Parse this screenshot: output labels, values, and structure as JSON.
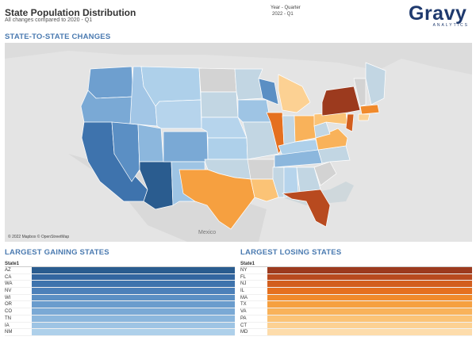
{
  "header": {
    "title": "State Population Distribution",
    "subtitle": "All changes compared to 2020 - Q1",
    "filter_label": "Year - Quarter",
    "filter_value": "2022 - Q1"
  },
  "logo": {
    "word": "Gravy",
    "tagline": "ANALYTICS"
  },
  "map": {
    "section_title": "STATE-TO-STATE CHANGES",
    "credit": "© 2022 Mapbox © OpenStreetMap",
    "country_label": "Mexico"
  },
  "gaining": {
    "section_title": "LARGEST GAINING STATES",
    "column_header": "State1",
    "rows": [
      {
        "state": "AZ",
        "color": "#2a5c8f"
      },
      {
        "state": "CA",
        "color": "#3366a0"
      },
      {
        "state": "WA",
        "color": "#3e73ad"
      },
      {
        "state": "NV",
        "color": "#4c80b9"
      },
      {
        "state": "WI",
        "color": "#5b8fc4"
      },
      {
        "state": "OR",
        "color": "#6a9ccd"
      },
      {
        "state": "CO",
        "color": "#7aa9d5"
      },
      {
        "state": "TN",
        "color": "#8cb7dd"
      },
      {
        "state": "IA",
        "color": "#9ec4e4"
      },
      {
        "state": "NM",
        "color": "#aed0ea"
      }
    ]
  },
  "losing": {
    "section_title": "LARGEST LOSING STATES",
    "column_header": "State1",
    "rows": [
      {
        "state": "NY",
        "color": "#9c3a1e"
      },
      {
        "state": "FL",
        "color": "#b84a1f"
      },
      {
        "state": "NJ",
        "color": "#d25e1e"
      },
      {
        "state": "IL",
        "color": "#e5701f"
      },
      {
        "state": "MA",
        "color": "#f08a2c"
      },
      {
        "state": "TX",
        "color": "#f6a040"
      },
      {
        "state": "VA",
        "color": "#f9b25a"
      },
      {
        "state": "PA",
        "color": "#fbc376"
      },
      {
        "state": "CT",
        "color": "#fcd193"
      },
      {
        "state": "MD",
        "color": "#fddcab"
      }
    ]
  }
}
